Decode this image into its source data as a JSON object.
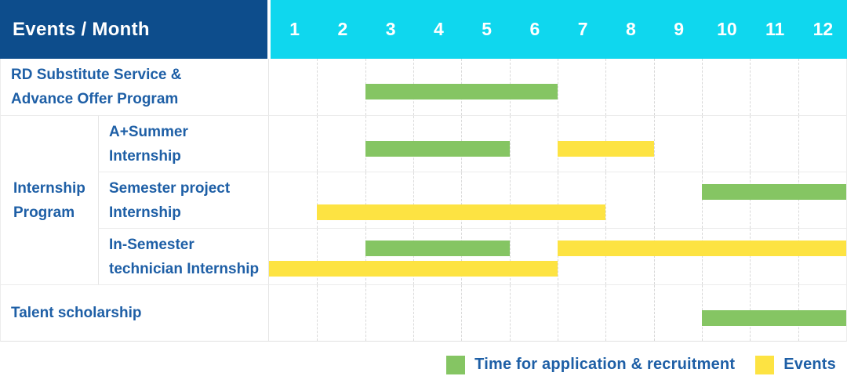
{
  "header": {
    "corner_label": "Events / Month"
  },
  "colors": {
    "header_bg": "#0d4d8c",
    "months_bg": "#0fd7ee",
    "label_text": "#1e5fa6",
    "green": "#85c563",
    "yellow": "#fde342"
  },
  "legend": [
    {
      "key": "application",
      "label": "Time for application & recruitment",
      "color": "#85c563"
    },
    {
      "key": "events",
      "label": "Events",
      "color": "#fde342"
    }
  ],
  "chart_data": {
    "type": "table",
    "subtype": "gantt-timeline",
    "title": "Events / Month",
    "x_range": [
      1,
      12
    ],
    "months": [
      "1",
      "2",
      "3",
      "4",
      "5",
      "6",
      "7",
      "8",
      "9",
      "10",
      "11",
      "12"
    ],
    "legend_entries": [
      "Time for application & recruitment",
      "Events"
    ],
    "group_label_lines": [
      "Internship",
      "Program"
    ],
    "rows": [
      {
        "id": "rd-substitute",
        "label_lines": [
          "RD Substitute Service &",
          "Advance Offer Program"
        ],
        "group": null,
        "lanes": 1,
        "bars": [
          {
            "type": "application",
            "start_month": 3,
            "end_month": 6,
            "lane": 1
          }
        ]
      },
      {
        "id": "a-plus-summer-internship",
        "label_lines": [
          "A+Summer",
          "Internship"
        ],
        "group": "Internship Program",
        "lanes": 1,
        "bars": [
          {
            "type": "application",
            "start_month": 3,
            "end_month": 5,
            "lane": 1
          },
          {
            "type": "events",
            "start_month": 7,
            "end_month": 8,
            "lane": 1
          }
        ]
      },
      {
        "id": "semester-project-internship",
        "label_lines": [
          "Semester project",
          "Internship"
        ],
        "group": "Internship Program",
        "lanes": 2,
        "bars": [
          {
            "type": "application",
            "start_month": 10,
            "end_month": 12,
            "lane": 1
          },
          {
            "type": "events",
            "start_month": 2,
            "end_month": 7,
            "lane": 2
          }
        ]
      },
      {
        "id": "in-semester-technician-internship",
        "label_lines": [
          "In-Semester",
          "technician Internship"
        ],
        "group": "Internship Program",
        "lanes": 2,
        "bars": [
          {
            "type": "application",
            "start_month": 3,
            "end_month": 5,
            "lane": 1
          },
          {
            "type": "events",
            "start_month": 7,
            "end_month": 12,
            "lane": 1
          },
          {
            "type": "events",
            "start_month": 1,
            "end_month": 6,
            "lane": 2
          }
        ]
      },
      {
        "id": "talent-scholarship",
        "label_lines": [
          "Talent scholarship"
        ],
        "group": null,
        "lanes": 1,
        "bars": [
          {
            "type": "application",
            "start_month": 10,
            "end_month": 12,
            "lane": 1
          }
        ]
      }
    ]
  }
}
